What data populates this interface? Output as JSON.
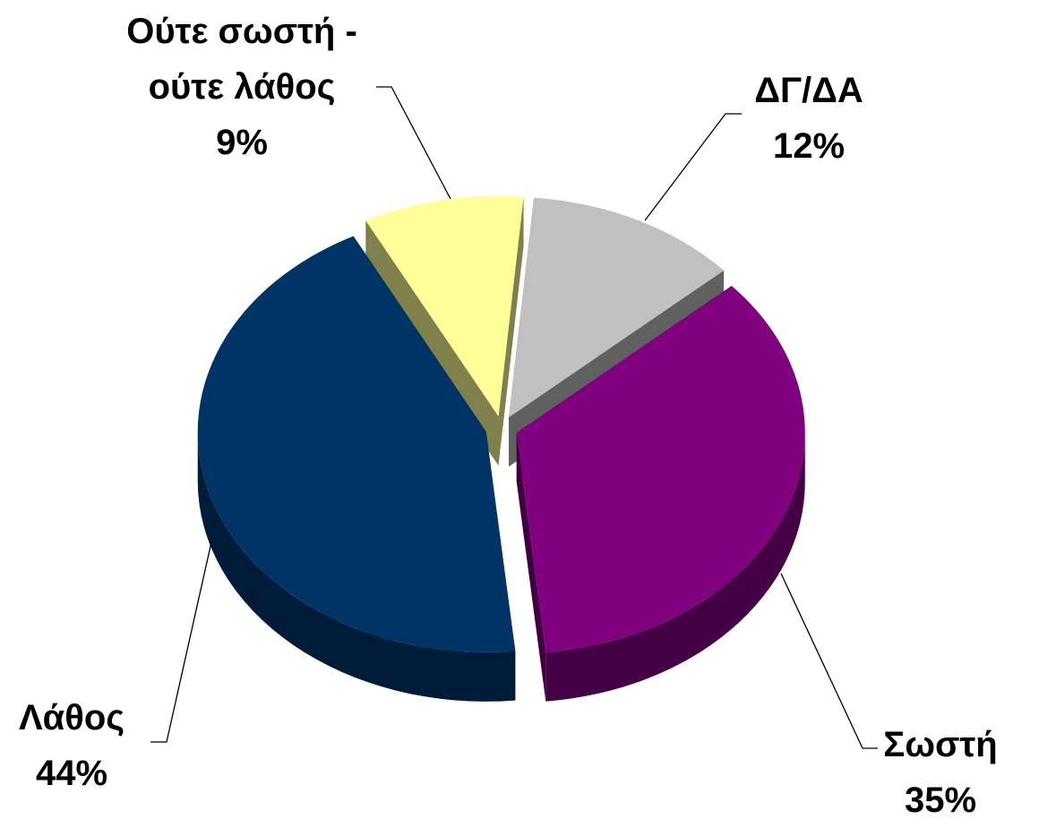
{
  "chart_data": {
    "type": "pie",
    "categories": [
      "ΔΓ/ΔΑ",
      "Σωστή",
      "Λάθος",
      "Ούτε σωστή - ούτε λάθος"
    ],
    "values": [
      12,
      35,
      44,
      9
    ],
    "value_labels": [
      "12%",
      "35%",
      "44%",
      "9%"
    ],
    "colors": [
      "#c0c0c0",
      "#800080",
      "#003366",
      "#ffff99"
    ]
  }
}
